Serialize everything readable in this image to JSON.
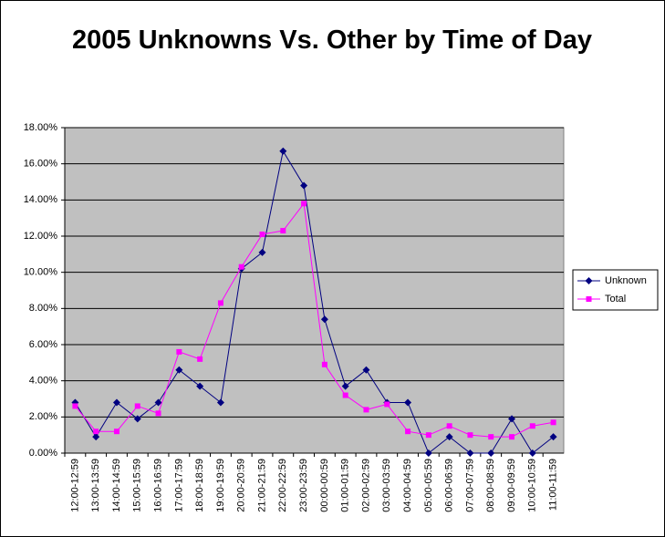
{
  "chart_data": {
    "type": "line",
    "title": "2005 Unknowns Vs. Other by Time of Day",
    "categories": [
      "12:00-12:59",
      "13:00-13:59",
      "14:00-14:59",
      "15:00-15:59",
      "16:00-16:59",
      "17:00-17:59",
      "18:00-18:59",
      "19:00-19:59",
      "20:00-20:59",
      "21:00-21:59",
      "22:00-22:59",
      "23:00-23:59",
      "00:00-00:59",
      "01:00-01:59",
      "02:00-02:59",
      "03:00-03:59",
      "04:00-04:59",
      "05:00-05:59",
      "06:00-06:59",
      "07:00-07:59",
      "08:00-08:59",
      "09:00-09:59",
      "10:00-10:59",
      "11:00-11:59"
    ],
    "series": [
      {
        "name": "Unknown",
        "color": "#000080",
        "marker": "diamond",
        "values": [
          2.8,
          0.9,
          2.8,
          1.9,
          2.8,
          4.6,
          3.7,
          2.8,
          10.2,
          11.1,
          16.7,
          14.8,
          7.4,
          3.7,
          4.6,
          2.8,
          2.8,
          0,
          0.9,
          0,
          0,
          1.9,
          0,
          0.9
        ]
      },
      {
        "name": "Total",
        "color": "#ff00ff",
        "marker": "square",
        "values": [
          2.6,
          1.2,
          1.2,
          2.6,
          2.2,
          5.6,
          5.2,
          8.3,
          10.3,
          12.1,
          12.3,
          13.8,
          4.9,
          3.2,
          2.4,
          2.7,
          1.2,
          1.0,
          1.5,
          1.0,
          0.9,
          0.9,
          1.5,
          1.7
        ]
      }
    ],
    "ylim": [
      0,
      18
    ],
    "yticks": [
      {
        "value": 0,
        "label": "0.00%"
      },
      {
        "value": 2,
        "label": "2.00%"
      },
      {
        "value": 4,
        "label": "4.00%"
      },
      {
        "value": 6,
        "label": "6.00%"
      },
      {
        "value": 8,
        "label": "8.00%"
      },
      {
        "value": 10,
        "label": "10.00%"
      },
      {
        "value": 12,
        "label": "12.00%"
      },
      {
        "value": 14,
        "label": "14.00%"
      },
      {
        "value": 16,
        "label": "16.00%"
      },
      {
        "value": 18,
        "label": "18.00%"
      }
    ],
    "grid": true,
    "legend": "right",
    "plot_background": "#c0c0c0"
  }
}
